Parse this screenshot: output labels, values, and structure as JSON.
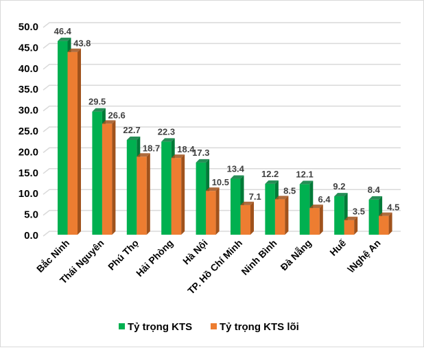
{
  "chart_data": {
    "type": "bar",
    "categories": [
      "Bắc Ninh",
      "Thái Nguyên",
      "Phú Thọ",
      "Hải Phòng",
      "Hà Nội",
      "TP. Hồ Chí Minh",
      "Ninh Bình",
      "Đà Nẵng",
      "Huế",
      "\\Nghệ An"
    ],
    "series": [
      {
        "name": "Tỷ trọng KTS",
        "color": "#00b050",
        "values": [
          46.4,
          29.5,
          22.7,
          22.3,
          17.3,
          13.4,
          12.2,
          12.1,
          9.2,
          8.4
        ]
      },
      {
        "name": "Tỷ trọng KTS lõi",
        "color": "#ed7d31",
        "values": [
          43.8,
          26.6,
          18.7,
          18.4,
          10.5,
          7.1,
          8.5,
          6.4,
          3.5,
          4.5
        ]
      }
    ],
    "yticks": [
      "0.0",
      "5.0",
      "10.0",
      "15.0",
      "20.0",
      "25.0",
      "30.0",
      "35.0",
      "40.0",
      "45.0",
      "50.0"
    ],
    "ylim": [
      0,
      50
    ],
    "grid": true,
    "legend": "bottom",
    "style": "3d-clustered-column"
  }
}
